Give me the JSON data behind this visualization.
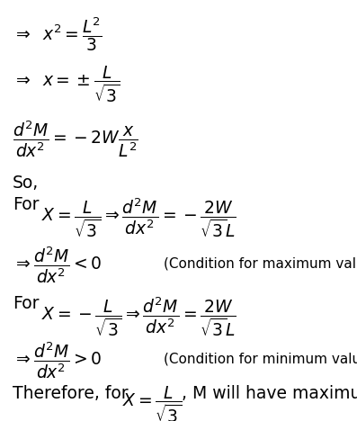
{
  "background_color": "#ffffff",
  "figsize": [
    3.97,
    4.68
  ],
  "dpi": 100,
  "line1": "$\\Rightarrow\\;\\; x^2 = \\dfrac{L^2}{3}$",
  "line2": "$\\Rightarrow\\;\\; x = \\pm\\dfrac{L}{\\sqrt{3}}$",
  "line3": "$\\dfrac{d^2M}{dx^2} = -2W\\dfrac{x}{L^2}$",
  "line4": "So,",
  "line5a": "For",
  "line5b": "$X = \\dfrac{L}{\\sqrt{3}} \\Rightarrow \\dfrac{d^2M}{dx^2} = -\\dfrac{2W}{\\sqrt{3}L}$",
  "line6a": "$\\Rightarrow\\dfrac{d^2M}{dx^2} < 0$",
  "line6b": "(Condition for maximum value)",
  "line7a": "For",
  "line7b": "$X = -\\dfrac{L}{\\sqrt{3}} \\Rightarrow \\dfrac{d^2M}{dx^2} = \\dfrac{2W}{\\sqrt{3}L}$",
  "line8a": "$\\Rightarrow\\dfrac{d^2M}{dx^2} > 0$",
  "line8b": "(Condition for minimum value)",
  "line9a": "Therefore, for",
  "line9b": "$X = \\dfrac{L}{\\sqrt{3}}$",
  "line9c": ", M will have maximum value."
}
